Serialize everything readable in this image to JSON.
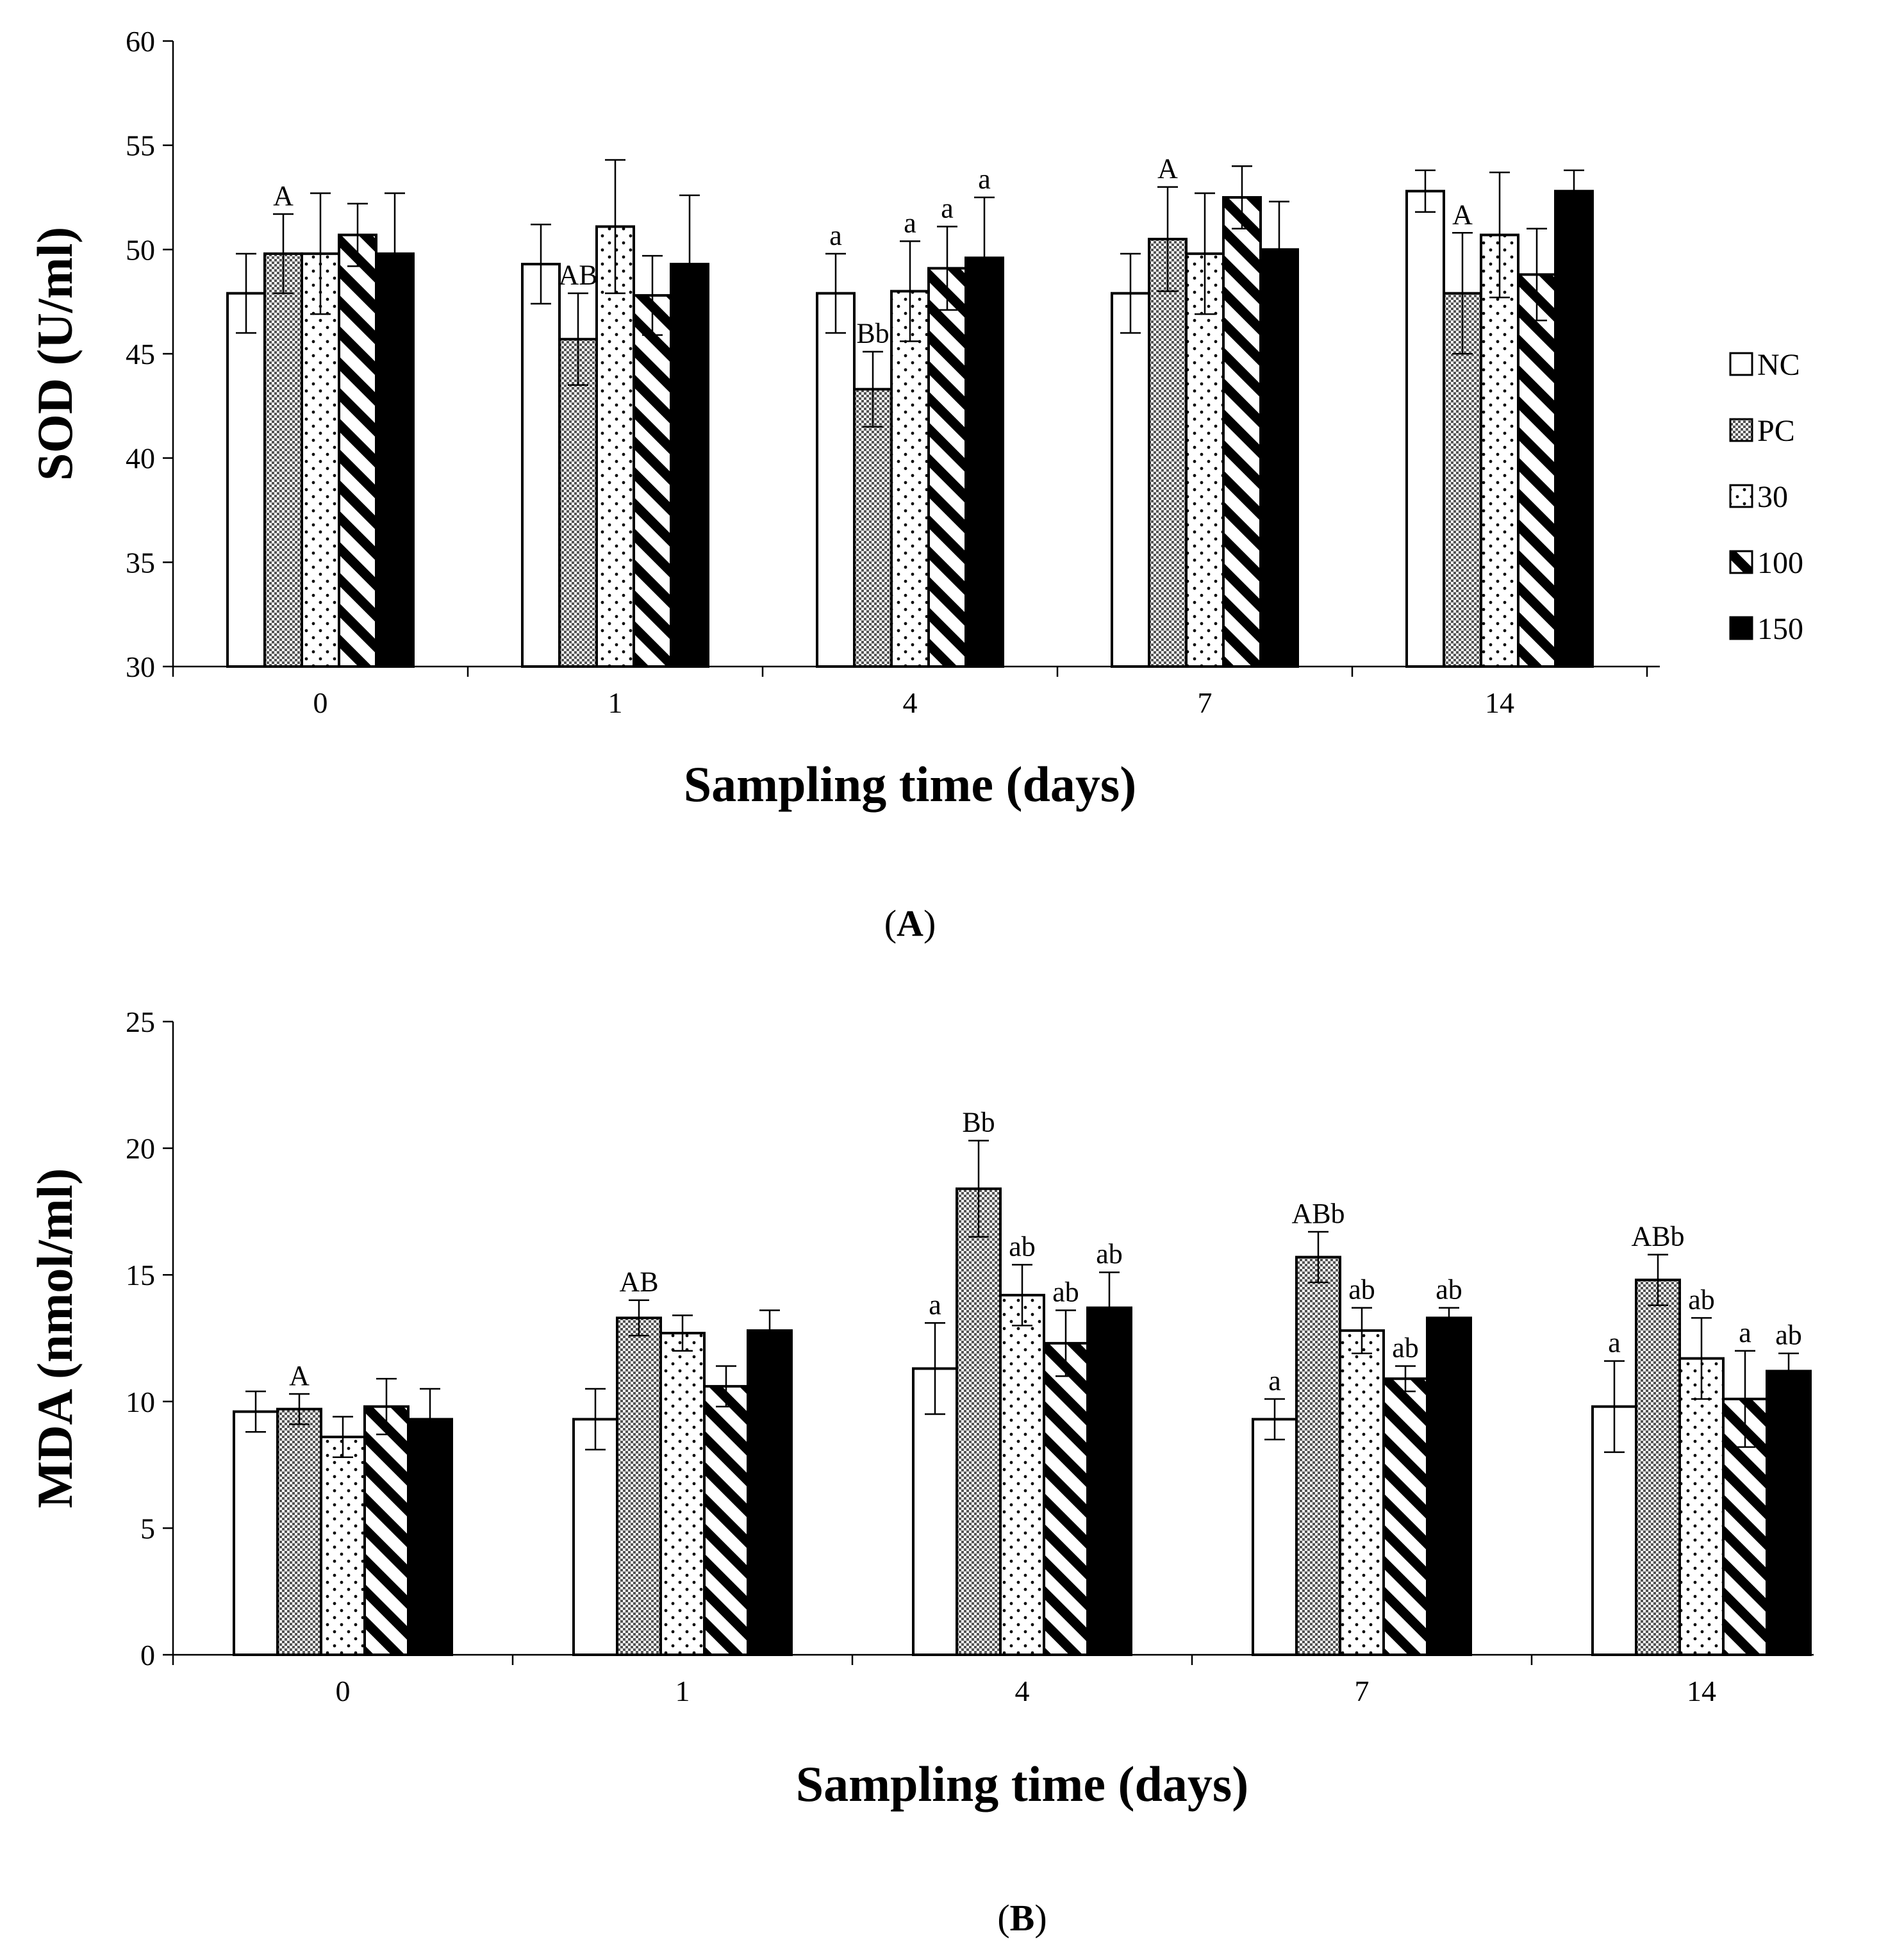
{
  "chart_data": [
    {
      "type": "bar",
      "panel_label": "A",
      "xlabel": "Sampling time (days)",
      "ylabel": "SOD (U/ml)",
      "ylim": [
        30,
        60
      ],
      "yticks": [
        30,
        35,
        40,
        45,
        50,
        55,
        60
      ],
      "categories": [
        "0",
        "1",
        "4",
        "7",
        "14"
      ],
      "grid": false,
      "legend": {
        "placement": "right",
        "entries": [
          "NC",
          "PC",
          "30",
          "100",
          "150"
        ]
      },
      "series": [
        {
          "name": "NC",
          "pattern": "white",
          "values": [
            47.9,
            49.3,
            47.9,
            47.9,
            52.8
          ],
          "errors": [
            1.9,
            1.9,
            1.9,
            1.9,
            1.0
          ],
          "labels": [
            "",
            "",
            "a",
            "",
            ""
          ]
        },
        {
          "name": "PC",
          "pattern": "checker",
          "values": [
            49.8,
            45.7,
            43.3,
            50.5,
            47.9
          ],
          "errors": [
            1.9,
            2.2,
            1.8,
            2.5,
            2.9
          ],
          "labels": [
            "A",
            "AB",
            "Bb",
            "A",
            "A"
          ]
        },
        {
          "name": "30",
          "pattern": "dots",
          "values": [
            49.8,
            51.1,
            48.0,
            49.8,
            50.7
          ],
          "errors": [
            2.9,
            3.2,
            2.4,
            2.9,
            3.0
          ],
          "labels": [
            "",
            "",
            "a",
            "",
            ""
          ]
        },
        {
          "name": "100",
          "pattern": "diagonal",
          "values": [
            50.7,
            47.8,
            49.1,
            52.5,
            48.8
          ],
          "errors": [
            1.5,
            1.9,
            2.0,
            1.5,
            2.2
          ],
          "labels": [
            "",
            "",
            "a",
            "",
            ""
          ]
        },
        {
          "name": "150",
          "pattern": "black",
          "values": [
            49.8,
            49.3,
            49.6,
            50.0,
            52.8
          ],
          "errors": [
            2.9,
            3.3,
            2.9,
            2.3,
            1.0
          ],
          "labels": [
            "",
            "",
            "a",
            "",
            ""
          ]
        }
      ]
    },
    {
      "type": "bar",
      "panel_label": "B",
      "xlabel": "Sampling time (days)",
      "ylabel": "MDA (nmol/ml)",
      "ylim": [
        0,
        25
      ],
      "yticks": [
        0,
        5,
        10,
        15,
        20,
        25
      ],
      "categories": [
        "0",
        "1",
        "4",
        "7",
        "14"
      ],
      "grid": false,
      "legend": {
        "placement": "none",
        "entries": []
      },
      "series": [
        {
          "name": "NC",
          "pattern": "white",
          "values": [
            9.6,
            9.3,
            11.3,
            9.3,
            9.8
          ],
          "errors": [
            0.8,
            1.2,
            1.8,
            0.8,
            1.8
          ],
          "labels": [
            "",
            "",
            "a",
            "a",
            "a"
          ]
        },
        {
          "name": "PC",
          "pattern": "checker",
          "values": [
            9.7,
            13.3,
            18.4,
            15.7,
            14.8
          ],
          "errors": [
            0.6,
            0.7,
            1.9,
            1.0,
            1.0
          ],
          "labels": [
            "A",
            "AB",
            "Bb",
            "ABb",
            "ABb"
          ]
        },
        {
          "name": "30",
          "pattern": "dots",
          "values": [
            8.6,
            12.7,
            14.2,
            12.8,
            11.7
          ],
          "errors": [
            0.8,
            0.7,
            1.2,
            0.9,
            1.6
          ],
          "labels": [
            "",
            "",
            "ab",
            "ab",
            "ab"
          ]
        },
        {
          "name": "100",
          "pattern": "diagonal",
          "values": [
            9.8,
            10.6,
            12.3,
            10.9,
            10.1
          ],
          "errors": [
            1.1,
            0.8,
            1.3,
            0.5,
            1.9
          ],
          "labels": [
            "",
            "",
            "ab",
            "ab",
            "a"
          ]
        },
        {
          "name": "150",
          "pattern": "black",
          "values": [
            9.3,
            12.8,
            13.7,
            13.3,
            11.2
          ],
          "errors": [
            1.2,
            0.8,
            1.4,
            0.4,
            0.7
          ],
          "labels": [
            "",
            "",
            "ab",
            "ab",
            "ab"
          ]
        }
      ]
    }
  ]
}
